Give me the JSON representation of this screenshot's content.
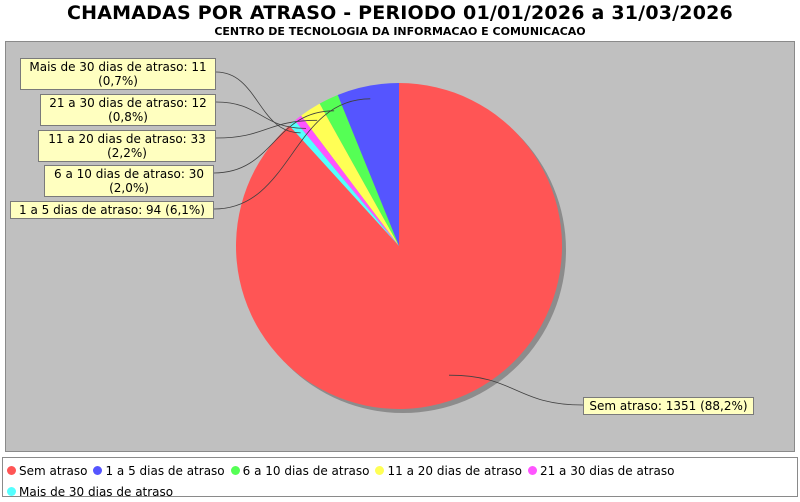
{
  "chart_data": {
    "type": "pie",
    "title": "CHAMADAS POR ATRASO - PERIODO 01/01/2026 a 31/03/2026",
    "subtitle": "CENTRO DE TECNOLOGIA DA INFORMACAO E COMUNICACAO",
    "legend_position": "bottom",
    "slices": [
      {
        "name": "Sem atraso",
        "value": 1351,
        "percent": "88,2%",
        "color": "#ff5555",
        "label": "Sem atraso: 1351 (88,2%)"
      },
      {
        "name": "1 a 5 dias de atraso",
        "value": 94,
        "percent": "6,1%",
        "color": "#5555ff",
        "label": "1 a 5 dias de atraso: 94 (6,1%)"
      },
      {
        "name": "6 a 10 dias de atraso",
        "value": 30,
        "percent": "2,0%",
        "color": "#55ff55",
        "label": "6 a 10 dias de atraso: 30 (2,0%)"
      },
      {
        "name": "11 a 20 dias de atraso",
        "value": 33,
        "percent": "2,2%",
        "color": "#ffff55",
        "label": "11 a 20 dias de atraso: 33 (2,2%)"
      },
      {
        "name": "21 a 30 dias de atraso",
        "value": 12,
        "percent": "0,8%",
        "color": "#ff55ff",
        "label": "21 a 30 dias de atraso: 12 (0,8%)"
      },
      {
        "name": "Mais de 30 dias de atraso",
        "value": 11,
        "percent": "0,7%",
        "color": "#55ffff",
        "label": "Mais de 30 dias de atraso: 11 (0,7%)"
      }
    ],
    "callouts": {
      "slice_0": {
        "line1": "Sem atraso: 1351 (88,2%)"
      },
      "slice_1": {
        "line1": "1 a 5 dias de atraso: 94 (6,1%)"
      },
      "slice_2": {
        "line1": "6 a 10 dias de atraso: 30",
        "line2": "(2,0%)"
      },
      "slice_3": {
        "line1": "11 a 20 dias de atraso: 33",
        "line2": "(2,2%)"
      },
      "slice_4": {
        "line1": "21 a 30 dias de atraso: 12",
        "line2": "(0,8%)"
      },
      "slice_5": {
        "line1": "Mais de 30 dias de atraso: 11",
        "line2": "(0,7%)"
      }
    },
    "plot_background": "#c0c0c0",
    "callout_background": "#ffffc0"
  }
}
